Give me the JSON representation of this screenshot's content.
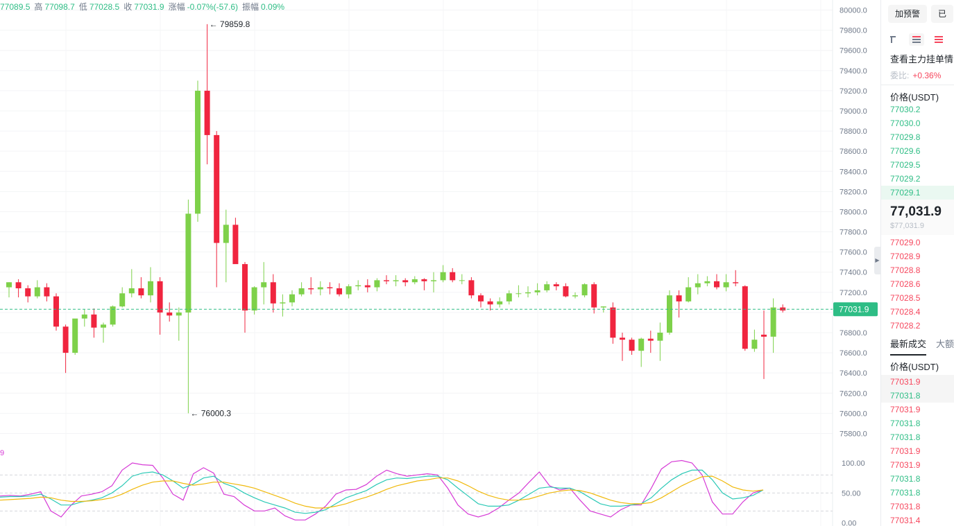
{
  "ohlc": {
    "open_value": "77089.5",
    "high_key": "高",
    "high_value": "77098.7",
    "low_key": "低",
    "low_value": "77028.5",
    "close_key": "收",
    "close_value": "77031.9",
    "change_key": "涨幅",
    "change_value": "-0.07%(-57.6)",
    "amp_key": "振幅",
    "amp_value": "0.09%"
  },
  "kd_label": "9",
  "chart_data": [
    {
      "type": "candlestick",
      "ylim": [
        75700,
        80100
      ],
      "y_ticks": [
        "80000.0",
        "79800.0",
        "79600.0",
        "79400.0",
        "79200.0",
        "79000.0",
        "78800.0",
        "78600.0",
        "78400.0",
        "78200.0",
        "78000.0",
        "77800.0",
        "77600.0",
        "77400.0",
        "77200.0",
        "77000.0",
        "76800.0",
        "76600.0",
        "76400.0",
        "76200.0",
        "76000.0",
        "75800.0"
      ],
      "y_tick_values": [
        80000,
        79800,
        79600,
        79400,
        79200,
        79000,
        78800,
        78600,
        78400,
        78200,
        78000,
        77800,
        77600,
        77400,
        77200,
        77000,
        76800,
        76600,
        76400,
        76200,
        76000,
        75800
      ],
      "current_price": 77031.9,
      "current_price_label": "77031.9",
      "high_annotation": "← 79859.8",
      "low_annotation": "← 76000.3",
      "up_color": "#7ed14a",
      "down_color": "#f0253f",
      "candles": [
        {
          "o": 77250,
          "h": 77300,
          "l": 77150,
          "c": 77300
        },
        {
          "o": 77300,
          "h": 77330,
          "l": 77150,
          "c": 77240
        },
        {
          "o": 77240,
          "h": 77270,
          "l": 77100,
          "c": 77160
        },
        {
          "o": 77160,
          "h": 77320,
          "l": 77140,
          "c": 77250
        },
        {
          "o": 77250,
          "h": 77290,
          "l": 77110,
          "c": 77160
        },
        {
          "o": 77160,
          "h": 77190,
          "l": 76820,
          "c": 76860
        },
        {
          "o": 76860,
          "h": 76880,
          "l": 76400,
          "c": 76600
        },
        {
          "o": 76600,
          "h": 76920,
          "l": 76580,
          "c": 76940
        },
        {
          "o": 76940,
          "h": 77030,
          "l": 76860,
          "c": 76980
        },
        {
          "o": 76980,
          "h": 77040,
          "l": 76750,
          "c": 76850
        },
        {
          "o": 76850,
          "h": 76900,
          "l": 76700,
          "c": 76880
        },
        {
          "o": 76880,
          "h": 77070,
          "l": 76860,
          "c": 77060
        },
        {
          "o": 77060,
          "h": 77250,
          "l": 77050,
          "c": 77190
        },
        {
          "o": 77190,
          "h": 77430,
          "l": 77150,
          "c": 77240
        },
        {
          "o": 77240,
          "h": 77350,
          "l": 77140,
          "c": 77170
        },
        {
          "o": 77170,
          "h": 77450,
          "l": 77100,
          "c": 77310
        },
        {
          "o": 77310,
          "h": 77350,
          "l": 76780,
          "c": 77000
        },
        {
          "o": 77000,
          "h": 77100,
          "l": 76910,
          "c": 76970
        },
        {
          "o": 76970,
          "h": 77050,
          "l": 76720,
          "c": 77000
        },
        {
          "o": 77000,
          "h": 78120,
          "l": 76000,
          "c": 77980
        },
        {
          "o": 77980,
          "h": 79300,
          "l": 77900,
          "c": 79200
        },
        {
          "o": 79200,
          "h": 79860,
          "l": 78470,
          "c": 78760
        },
        {
          "o": 78760,
          "h": 78800,
          "l": 77250,
          "c": 77690
        },
        {
          "o": 77690,
          "h": 78020,
          "l": 77300,
          "c": 77870
        },
        {
          "o": 77870,
          "h": 77940,
          "l": 77500,
          "c": 77480
        },
        {
          "o": 77480,
          "h": 77500,
          "l": 76800,
          "c": 77020
        },
        {
          "o": 77020,
          "h": 77260,
          "l": 76980,
          "c": 77250
        },
        {
          "o": 77250,
          "h": 77500,
          "l": 77080,
          "c": 77300
        },
        {
          "o": 77300,
          "h": 77380,
          "l": 77000,
          "c": 77090
        },
        {
          "o": 77090,
          "h": 77180,
          "l": 76960,
          "c": 77100
        },
        {
          "o": 77100,
          "h": 77220,
          "l": 77060,
          "c": 77180
        },
        {
          "o": 77180,
          "h": 77300,
          "l": 77160,
          "c": 77240
        },
        {
          "o": 77240,
          "h": 77350,
          "l": 77180,
          "c": 77230
        },
        {
          "o": 77230,
          "h": 77310,
          "l": 77170,
          "c": 77250
        },
        {
          "o": 77250,
          "h": 77300,
          "l": 77180,
          "c": 77240
        },
        {
          "o": 77240,
          "h": 77290,
          "l": 77160,
          "c": 77180
        },
        {
          "o": 77180,
          "h": 77280,
          "l": 77140,
          "c": 77260
        },
        {
          "o": 77260,
          "h": 77320,
          "l": 77220,
          "c": 77270
        },
        {
          "o": 77270,
          "h": 77330,
          "l": 77200,
          "c": 77250
        },
        {
          "o": 77250,
          "h": 77340,
          "l": 77210,
          "c": 77320
        },
        {
          "o": 77320,
          "h": 77370,
          "l": 77280,
          "c": 77310
        },
        {
          "o": 77310,
          "h": 77370,
          "l": 77260,
          "c": 77320
        },
        {
          "o": 77320,
          "h": 77340,
          "l": 77260,
          "c": 77300
        },
        {
          "o": 77300,
          "h": 77360,
          "l": 77280,
          "c": 77330
        },
        {
          "o": 77330,
          "h": 77340,
          "l": 77220,
          "c": 77310
        },
        {
          "o": 77310,
          "h": 77400,
          "l": 77200,
          "c": 77320
        },
        {
          "o": 77320,
          "h": 77470,
          "l": 77300,
          "c": 77400
        },
        {
          "o": 77400,
          "h": 77440,
          "l": 77300,
          "c": 77320
        },
        {
          "o": 77320,
          "h": 77380,
          "l": 77280,
          "c": 77320
        },
        {
          "o": 77320,
          "h": 77350,
          "l": 77140,
          "c": 77170
        },
        {
          "o": 77170,
          "h": 77190,
          "l": 77050,
          "c": 77110
        },
        {
          "o": 77110,
          "h": 77140,
          "l": 77020,
          "c": 77080
        },
        {
          "o": 77080,
          "h": 77150,
          "l": 77050,
          "c": 77110
        },
        {
          "o": 77110,
          "h": 77220,
          "l": 77080,
          "c": 77190
        },
        {
          "o": 77190,
          "h": 77270,
          "l": 77150,
          "c": 77190
        },
        {
          "o": 77190,
          "h": 77260,
          "l": 77150,
          "c": 77200
        },
        {
          "o": 77200,
          "h": 77290,
          "l": 77170,
          "c": 77220
        },
        {
          "o": 77220,
          "h": 77310,
          "l": 77200,
          "c": 77280
        },
        {
          "o": 77280,
          "h": 77300,
          "l": 77220,
          "c": 77260
        },
        {
          "o": 77260,
          "h": 77290,
          "l": 77150,
          "c": 77160
        },
        {
          "o": 77160,
          "h": 77200,
          "l": 77140,
          "c": 77170
        },
        {
          "o": 77170,
          "h": 77290,
          "l": 77150,
          "c": 77280
        },
        {
          "o": 77280,
          "h": 77300,
          "l": 76990,
          "c": 77050
        },
        {
          "o": 77050,
          "h": 77060,
          "l": 77000,
          "c": 77060
        },
        {
          "o": 77050,
          "h": 77100,
          "l": 76690,
          "c": 76750
        },
        {
          "o": 76750,
          "h": 76800,
          "l": 76520,
          "c": 76730
        },
        {
          "o": 76730,
          "h": 76750,
          "l": 76580,
          "c": 76620
        },
        {
          "o": 76620,
          "h": 76750,
          "l": 76460,
          "c": 76740
        },
        {
          "o": 76740,
          "h": 76820,
          "l": 76600,
          "c": 76720
        },
        {
          "o": 76720,
          "h": 76900,
          "l": 76520,
          "c": 76800
        },
        {
          "o": 76800,
          "h": 77220,
          "l": 76780,
          "c": 77170
        },
        {
          "o": 77170,
          "h": 77220,
          "l": 76950,
          "c": 77110
        },
        {
          "o": 77110,
          "h": 77350,
          "l": 77100,
          "c": 77250
        },
        {
          "o": 77250,
          "h": 77380,
          "l": 77180,
          "c": 77290
        },
        {
          "o": 77290,
          "h": 77360,
          "l": 77260,
          "c": 77310
        },
        {
          "o": 77310,
          "h": 77380,
          "l": 77230,
          "c": 77250
        },
        {
          "o": 77250,
          "h": 77380,
          "l": 77210,
          "c": 77300
        },
        {
          "o": 77300,
          "h": 77420,
          "l": 77260,
          "c": 77290
        },
        {
          "o": 77260,
          "h": 77270,
          "l": 76620,
          "c": 76640
        },
        {
          "o": 76640,
          "h": 76830,
          "l": 76610,
          "c": 76730
        },
        {
          "o": 76780,
          "h": 77020,
          "l": 76340,
          "c": 76760
        },
        {
          "o": 76760,
          "h": 77140,
          "l": 76600,
          "c": 77050
        },
        {
          "o": 77050,
          "h": 77080,
          "l": 77000,
          "c": 77020
        }
      ]
    },
    {
      "type": "line",
      "ylim": [
        -5,
        115
      ],
      "y_ticks": [
        "100.00",
        "50.00",
        "0.00"
      ],
      "y_tick_values": [
        100,
        50,
        0
      ],
      "dashed_levels": [
        80,
        50,
        20
      ],
      "series": [
        {
          "color": "#d63ad6",
          "values": [
            45,
            46,
            45,
            48,
            52,
            20,
            10,
            30,
            45,
            48,
            52,
            62,
            88,
            100,
            97,
            96,
            75,
            48,
            38,
            82,
            92,
            83,
            48,
            44,
            30,
            20,
            20,
            25,
            12,
            5,
            5,
            15,
            28,
            48,
            55,
            56,
            64,
            78,
            88,
            82,
            78,
            80,
            82,
            80,
            58,
            30,
            15,
            10,
            15,
            25,
            38,
            50,
            68,
            85,
            62,
            55,
            58,
            38,
            20,
            15,
            10,
            22,
            30,
            30,
            58,
            90,
            102,
            104,
            100,
            80,
            35,
            15,
            15,
            35,
            50,
            55
          ]
        },
        {
          "color": "#2bc9b6",
          "values": [
            43,
            44,
            44,
            45,
            48,
            40,
            30,
            30,
            35,
            38,
            42,
            50,
            62,
            78,
            83,
            85,
            80,
            70,
            58,
            65,
            75,
            78,
            66,
            60,
            50,
            42,
            35,
            30,
            25,
            18,
            16,
            18,
            22,
            32,
            42,
            48,
            54,
            64,
            72,
            75,
            74,
            76,
            78,
            78,
            72,
            58,
            45,
            32,
            28,
            28,
            30,
            38,
            48,
            58,
            60,
            58,
            58,
            52,
            42,
            32,
            28,
            28,
            30,
            32,
            42,
            58,
            72,
            82,
            88,
            88,
            72,
            50,
            40,
            42,
            46,
            55
          ]
        },
        {
          "color": "#f0b90b",
          "values": [
            38,
            39,
            40,
            41,
            43,
            42,
            38,
            36,
            36,
            37,
            39,
            42,
            48,
            56,
            63,
            68,
            70,
            70,
            66,
            63,
            65,
            68,
            68,
            65,
            62,
            58,
            52,
            46,
            40,
            33,
            28,
            25,
            25,
            28,
            32,
            38,
            43,
            49,
            56,
            62,
            66,
            70,
            72,
            75,
            75,
            70,
            62,
            53,
            46,
            41,
            38,
            38,
            40,
            45,
            50,
            53,
            55,
            54,
            50,
            44,
            38,
            34,
            32,
            32,
            34,
            42,
            52,
            62,
            70,
            77,
            78,
            70,
            60,
            55,
            53,
            55
          ]
        }
      ]
    }
  ],
  "side": {
    "alert_button": "加预警",
    "second_button": "已",
    "depth_title": "查看主力挂单情",
    "ratio_label": "委比:",
    "ratio_value": "+0.36%",
    "price_header": "价格(USDT)",
    "asks": [
      "77030.2",
      "77030.0",
      "77029.8",
      "77029.6",
      "77029.5",
      "77029.2",
      "77029.1"
    ],
    "last_price": "77,031.9",
    "last_price_usd": "$77,031.9",
    "bids": [
      "77029.0",
      "77028.9",
      "77028.8",
      "77028.6",
      "77028.5",
      "77028.4",
      "77028.2"
    ],
    "tabs": [
      "最新成交",
      "大额"
    ],
    "trades_header": "价格(USDT)",
    "trades": [
      {
        "price": "77031.9",
        "color": "red"
      },
      {
        "price": "77031.8",
        "color": "green"
      },
      {
        "price": "77031.9",
        "color": "red"
      },
      {
        "price": "77031.8",
        "color": "green"
      },
      {
        "price": "77031.8",
        "color": "green"
      },
      {
        "price": "77031.9",
        "color": "red"
      },
      {
        "price": "77031.9",
        "color": "red"
      },
      {
        "price": "77031.8",
        "color": "green"
      },
      {
        "price": "77031.8",
        "color": "green"
      },
      {
        "price": "77031.8",
        "color": "red"
      },
      {
        "price": "77031.4",
        "color": "red"
      }
    ]
  }
}
